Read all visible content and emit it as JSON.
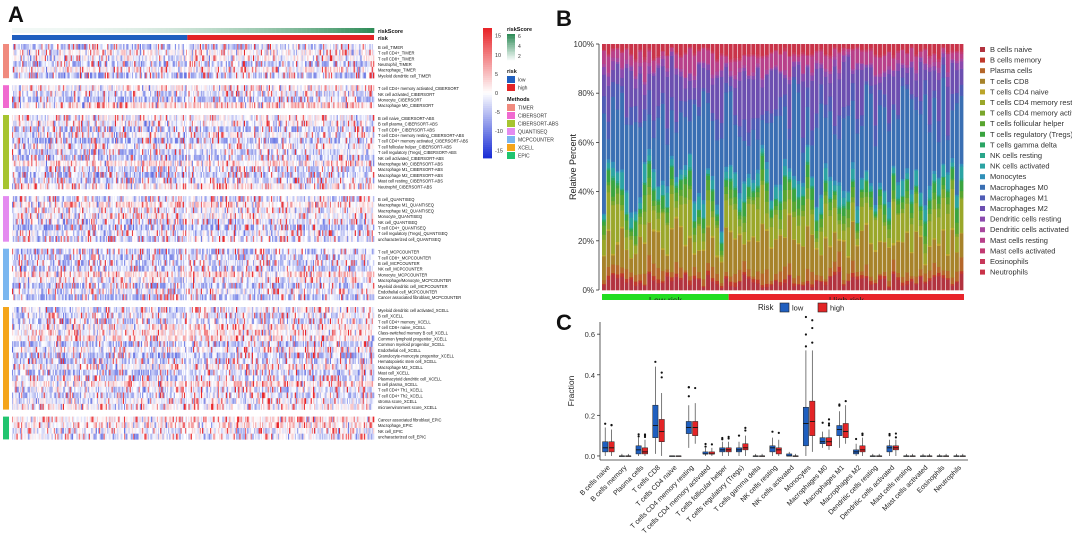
{
  "panels": {
    "a_letter": "A",
    "b_letter": "B",
    "c_letter": "C"
  },
  "colors": {
    "low": "#1f5fbf",
    "high": "#e32426",
    "heat_low": "#1b2fd6",
    "heat_mid": "#ffffff",
    "heat_high": "#e8252a",
    "risk_score_low": "#f1f8f5",
    "risk_score_high": "#2e8b57"
  },
  "chart_data": [
    {
      "id": "A",
      "type": "heatmap",
      "title": "",
      "annotation_titles": [
        "riskScore",
        "risk"
      ],
      "method_axis_label": "Methods",
      "legend": {
        "riskScore_title": "riskScore",
        "riskScore_ticks": [
          "6",
          "4",
          "2"
        ],
        "risk_title": "risk",
        "risk_levels": [
          "low",
          "high"
        ],
        "methods_title": "Methods",
        "methods": [
          {
            "name": "TIMER",
            "color": "#f08a7e"
          },
          {
            "name": "CIBERSORT",
            "color": "#f06ad0"
          },
          {
            "name": "CIBERSORT-ABS",
            "color": "#a6c430"
          },
          {
            "name": "QUANTISEQ",
            "color": "#e48bf0"
          },
          {
            "name": "MCPCOUNTER",
            "color": "#7ab6f0"
          },
          {
            "name": "XCELL",
            "color": "#f4a51c"
          },
          {
            "name": "EPIC",
            "color": "#21c46f"
          }
        ],
        "colorbar_ticks": [
          "15",
          "10",
          "5",
          "0",
          "-5",
          "-10",
          "-15"
        ],
        "colorbar_range": [
          -17,
          17
        ]
      },
      "n_low": 155,
      "n_high": 165,
      "groups": [
        {
          "method": "TIMER",
          "rows": [
            "B cell_TIMER",
            "T cell CD4+_TIMER",
            "T cell CD8+_TIMER",
            "Neutrophil_TIMER",
            "Macrophage_TIMER",
            "Myeloid dendritic cell_TIMER"
          ]
        },
        {
          "method": "CIBERSORT",
          "rows": [
            "T cell CD4+ memory activated_CIBERSORT",
            "NK cell activated_CIBERSORT",
            "Monocyte_CIBERSORT",
            "Macrophage M0_CIBERSORT"
          ]
        },
        {
          "method": "CIBERSORT-ABS",
          "rows": [
            "B cell naive_CIBERSORT-ABS",
            "B cell plasma_CIBERSORT-ABS",
            "T cell CD8+_CIBERSORT-ABS",
            "T cell CD4+ memory resting_CIBERSORT-ABS",
            "T cell CD4+ memory activated_CIBERSORT-ABS",
            "T cell follicular helper_CIBERSORT-ABS",
            "T cell regulatory (Tregs)_CIBERSORT-ABS",
            "NK cell activated_CIBERSORT-ABS",
            "Macrophage M0_CIBERSORT-ABS",
            "Macrophage M1_CIBERSORT-ABS",
            "Macrophage M2_CIBERSORT-ABS",
            "Mast cell resting_CIBERSORT-ABS",
            "Neutrophil_CIBERSORT-ABS"
          ]
        },
        {
          "method": "QUANTISEQ",
          "rows": [
            "B cell_QUANTISEQ",
            "Macrophage M1_QUANTISEQ",
            "Macrophage M2_QUANTISEQ",
            "Monocyte_QUANTISEQ",
            "NK cell_QUANTISEQ",
            "T cell CD4+_QUANTISEQ",
            "T cell regulatory (Tregs)_QUANTISEQ",
            "uncharacterized cell_QUANTISEQ"
          ]
        },
        {
          "method": "MCPCOUNTER",
          "rows": [
            "T cell_MCPCOUNTER",
            "T cell CD8+_MCPCOUNTER",
            "B cell_MCPCOUNTER",
            "NK cell_MCPCOUNTER",
            "Monocyte_MCPCOUNTER",
            "Macrophage/Monocyte_MCPCOUNTER",
            "Myeloid dendritic cell_MCPCOUNTER",
            "Endothelial cell_MCPCOUNTER",
            "Cancer associated fibroblast_MCPCOUNTER"
          ]
        },
        {
          "method": "XCELL",
          "rows": [
            "Myeloid dendritic cell activated_XCELL",
            "B cell_XCELL",
            "T cell CD4+ memory_XCELL",
            "T cell CD8+ naive_XCELL",
            "Class-switched memory B cell_XCELL",
            "Common lymphoid progenitor_XCELL",
            "Common myeloid progenitor_XCELL",
            "Endothelial cell_XCELL",
            "Granulocyte-monocyte progenitor_XCELL",
            "Hematopoietic stem cell_XCELL",
            "Macrophage M2_XCELL",
            "Mast cell_XCELL",
            "Plasmacytoid dendritic cell_XCELL",
            "B cell plasma_XCELL",
            "T cell CD4+ Th1_XCELL",
            "T cell CD4+ Th2_XCELL",
            "stroma score_XCELL",
            "microenvironment score_XCELL"
          ]
        },
        {
          "method": "EPIC",
          "rows": [
            "Cancer associated fibroblast_EPIC",
            "Macrophage_EPIC",
            "NK cell_EPIC",
            "uncharacterized cell_EPIC"
          ]
        }
      ]
    },
    {
      "id": "B",
      "type": "bar",
      "stacked": true,
      "ylabel": "Relative Percent",
      "yticks": [
        "0%",
        "20%",
        "40%",
        "60%",
        "80%",
        "100%"
      ],
      "ylim": [
        0,
        100
      ],
      "n_samples": 80,
      "n_low": 28,
      "group_labels": {
        "low": "Low risk",
        "high": "High risk"
      },
      "legend": [
        {
          "name": "B cells naive",
          "color": "#b2333f"
        },
        {
          "name": "B cells memory",
          "color": "#c0392b"
        },
        {
          "name": "Plasma cells",
          "color": "#b5672a"
        },
        {
          "name": "T cells CD8",
          "color": "#a7832a"
        },
        {
          "name": "T cells CD4 naive",
          "color": "#bba52a"
        },
        {
          "name": "T cells CD4 memory resting",
          "color": "#9aa72a"
        },
        {
          "name": "T cells CD4 memory activated",
          "color": "#7aa62b"
        },
        {
          "name": "T cells follicular helper",
          "color": "#58a52f"
        },
        {
          "name": "T cells regulatory (Tregs)",
          "color": "#3aa43f"
        },
        {
          "name": "T cells gamma delta",
          "color": "#2aa563"
        },
        {
          "name": "NK cells resting",
          "color": "#2aa68a"
        },
        {
          "name": "NK cells activated",
          "color": "#2ba3a3"
        },
        {
          "name": "Monocytes",
          "color": "#2f8fb8"
        },
        {
          "name": "Macrophages M0",
          "color": "#3a6fb3"
        },
        {
          "name": "Macrophages M1",
          "color": "#4f5cb6"
        },
        {
          "name": "Macrophages M2",
          "color": "#6c4fb0"
        },
        {
          "name": "Dendritic cells resting",
          "color": "#8a4aae"
        },
        {
          "name": "Dendritic cells activated",
          "color": "#a8479e"
        },
        {
          "name": "Mast cells resting",
          "color": "#b8408a"
        },
        {
          "name": "Mast cells activated",
          "color": "#c23a72"
        },
        {
          "name": "Eosinophils",
          "color": "#c7385a"
        },
        {
          "name": "Neutrophils",
          "color": "#c93349"
        }
      ],
      "mean_composition": [
        3.5,
        1.0,
        3.0,
        11.0,
        0.5,
        9.0,
        2.5,
        2.5,
        3.0,
        0.5,
        0.5,
        4.0,
        1.5,
        27.0,
        5.0,
        13.0,
        2.0,
        1.0,
        4.5,
        0.5,
        0.5,
        3.0
      ]
    },
    {
      "id": "C",
      "type": "box",
      "ylabel": "Fraction",
      "yticks": [
        0.0,
        0.2,
        0.4,
        0.6
      ],
      "ylim": [
        -0.02,
        0.66
      ],
      "legend_title": "Risk",
      "series_names": [
        "low",
        "high"
      ],
      "categories": [
        "B cells naive",
        "B cells memory",
        "Plasma cells",
        "T cells CD8",
        "T cells CD4 naive",
        "T cells CD4 memory resting",
        "T cells CD4 memory activated",
        "T cells follicular helper",
        "T cells regulatory (Tregs)",
        "T cells gamma delta",
        "NK cells resting",
        "NK cells activated",
        "Monocytes",
        "Macrophages M0",
        "Macrophages M1",
        "Macrophages M2",
        "Dendritic cells resting",
        "Dendritic cells activated",
        "Mast cells resting",
        "Mast cells activated",
        "Eosinophils",
        "Neutrophils"
      ],
      "series": [
        {
          "name": "low",
          "boxes": [
            [
              0,
              0.02,
              0.04,
              0.07,
              0.14
            ],
            [
              0,
              0,
              0,
              0,
              0.01
            ],
            [
              0,
              0.01,
              0.03,
              0.05,
              0.09
            ],
            [
              0.01,
              0.09,
              0.15,
              0.25,
              0.44
            ],
            [
              0,
              0,
              0,
              0,
              0
            ],
            [
              0.04,
              0.11,
              0.14,
              0.17,
              0.25
            ],
            [
              0,
              0.01,
              0.01,
              0.02,
              0.04
            ],
            [
              0,
              0.02,
              0.03,
              0.04,
              0.07
            ],
            [
              0,
              0.02,
              0.03,
              0.04,
              0.07
            ],
            [
              0,
              0,
              0,
              0,
              0.01
            ],
            [
              0,
              0.02,
              0.04,
              0.05,
              0.09
            ],
            [
              0,
              0,
              0,
              0.01,
              0.02
            ],
            [
              0,
              0.05,
              0.16,
              0.24,
              0.52
            ],
            [
              0.04,
              0.06,
              0.07,
              0.09,
              0.12
            ],
            [
              0.04,
              0.1,
              0.13,
              0.15,
              0.22
            ],
            [
              0,
              0.01,
              0.02,
              0.03,
              0.06
            ],
            [
              0,
              0,
              0,
              0,
              0.01
            ],
            [
              0,
              0.02,
              0.04,
              0.05,
              0.08
            ],
            [
              0,
              0,
              0,
              0,
              0.01
            ],
            [
              0,
              0,
              0,
              0,
              0.01
            ],
            [
              0,
              0,
              0,
              0,
              0.01
            ],
            [
              0,
              0,
              0,
              0,
              0.01
            ]
          ]
        },
        {
          "name": "high",
          "boxes": [
            [
              0,
              0.02,
              0.04,
              0.07,
              0.13
            ],
            [
              0,
              0,
              0,
              0,
              0.01
            ],
            [
              0,
              0.01,
              0.02,
              0.04,
              0.08
            ],
            [
              0,
              0.07,
              0.12,
              0.18,
              0.31
            ],
            [
              0,
              0,
              0,
              0,
              0
            ],
            [
              0.06,
              0.1,
              0.14,
              0.17,
              0.26
            ],
            [
              0,
              0.01,
              0.01,
              0.02,
              0.04
            ],
            [
              0,
              0.02,
              0.03,
              0.04,
              0.07
            ],
            [
              0,
              0.03,
              0.04,
              0.06,
              0.1
            ],
            [
              0,
              0,
              0,
              0,
              0.01
            ],
            [
              0,
              0.01,
              0.03,
              0.04,
              0.08
            ],
            [
              0,
              0,
              0,
              0,
              0.01
            ],
            [
              0.02,
              0.1,
              0.17,
              0.27,
              0.52
            ],
            [
              0.03,
              0.05,
              0.07,
              0.09,
              0.13
            ],
            [
              0.06,
              0.09,
              0.12,
              0.16,
              0.25
            ],
            [
              0,
              0.02,
              0.03,
              0.05,
              0.09
            ],
            [
              0,
              0,
              0,
              0,
              0.01
            ],
            [
              0,
              0.03,
              0.04,
              0.05,
              0.08
            ],
            [
              0,
              0,
              0,
              0,
              0.01
            ],
            [
              0,
              0,
              0,
              0,
              0.01
            ],
            [
              0,
              0,
              0,
              0,
              0.01
            ],
            [
              0,
              0,
              0,
              0,
              0.01
            ]
          ]
        }
      ]
    }
  ]
}
